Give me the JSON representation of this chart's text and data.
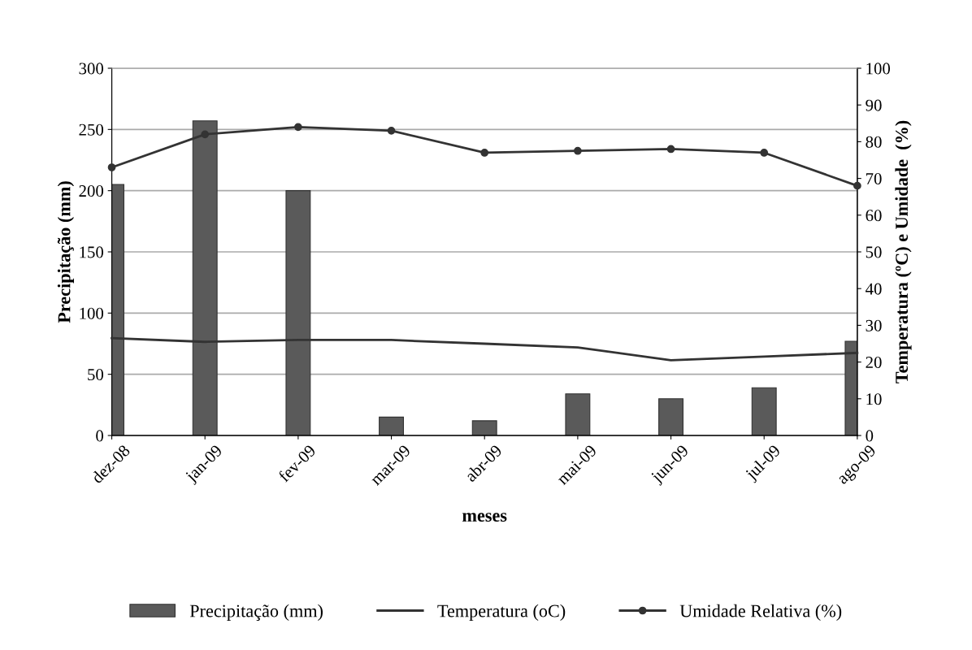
{
  "chart_data": {
    "type": "bar",
    "xlabel": "meses",
    "ylabel": "Precipitação (mm)",
    "y2label": "Temperatura (ºC) e Umidade  (%)",
    "categories": [
      "dez-08",
      "jan-09",
      "fev-09",
      "mar-09",
      "abr-09",
      "mai-09",
      "jun-09",
      "jul-09",
      "ago-09"
    ],
    "series": [
      {
        "name": "Precipitação (mm)",
        "color": "#5a5a5a",
        "values": [
          205,
          257,
          200,
          15,
          12,
          34,
          30,
          39,
          77
        ]
      },
      {
        "name": "Temperatura (oC)",
        "type": "line",
        "axis": "y2",
        "color": "#333333",
        "marker": "none",
        "values": [
          26.5,
          25.5,
          26,
          26,
          25,
          24,
          20.5,
          21.5,
          22.5
        ]
      },
      {
        "name": "Umidade Relativa (%)",
        "type": "line",
        "axis": "y2",
        "color": "#333333",
        "marker": "circle",
        "values": [
          73,
          82,
          84,
          83,
          77,
          77.5,
          78,
          77,
          68
        ]
      }
    ],
    "ylim": [
      0,
      300
    ],
    "yticks": [
      0,
      50,
      100,
      150,
      200,
      250,
      300
    ],
    "y2lim": [
      0,
      100
    ],
    "y2ticks": [
      0,
      10,
      20,
      30,
      40,
      50,
      60,
      70,
      80,
      90,
      100
    ],
    "grid": "y",
    "legend": "bottom",
    "line_style": "solid"
  }
}
